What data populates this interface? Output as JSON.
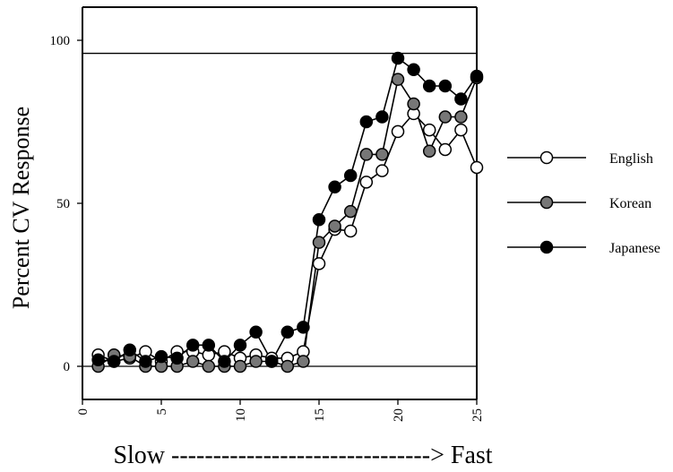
{
  "chart_data": {
    "type": "line",
    "ylabel": "Percent CV Response",
    "xlabel": "Slow -------------------------------> Fast",
    "xlim": [
      0,
      25
    ],
    "ylim": [
      -10,
      110
    ],
    "xticks": [
      "0",
      "5",
      "10",
      "15",
      "20",
      "25"
    ],
    "yticks": [
      "0",
      "50",
      "100"
    ],
    "reference_lines_y": [
      0,
      96
    ],
    "grid": false,
    "legend_position": "right",
    "x": [
      1,
      2,
      3,
      4,
      5,
      6,
      7,
      8,
      9,
      10,
      11,
      12,
      13,
      14,
      15,
      16,
      17,
      18,
      19,
      20,
      21,
      22,
      23,
      24,
      25
    ],
    "series": [
      {
        "name": "English",
        "marker_color": "#ffffff",
        "values": [
          3.5,
          1.5,
          2.5,
          4.5,
          1.5,
          4.5,
          4.5,
          3.5,
          4.5,
          2.5,
          3.5,
          2.5,
          2.5,
          4.5,
          31.5,
          42,
          41.5,
          56.5,
          60,
          72,
          77.5,
          72.5,
          66.5,
          72.5,
          61
        ]
      },
      {
        "name": "Korean",
        "marker_color": "#777777",
        "values": [
          0,
          3.5,
          3,
          0,
          0,
          0,
          1.5,
          0,
          0,
          0,
          1.5,
          1.5,
          0,
          1.5,
          38,
          43,
          47.5,
          65,
          65,
          88,
          80.5,
          66,
          76.5,
          76.5,
          88.5
        ]
      },
      {
        "name": "Japanese",
        "marker_color": "#000000",
        "values": [
          2,
          1.5,
          5,
          1.5,
          3,
          2.5,
          6.5,
          6.5,
          1.5,
          6.5,
          10.5,
          1.5,
          10.5,
          12,
          45,
          55,
          58.5,
          75,
          76.5,
          94.5,
          91,
          86,
          86,
          82,
          89
        ]
      }
    ]
  }
}
